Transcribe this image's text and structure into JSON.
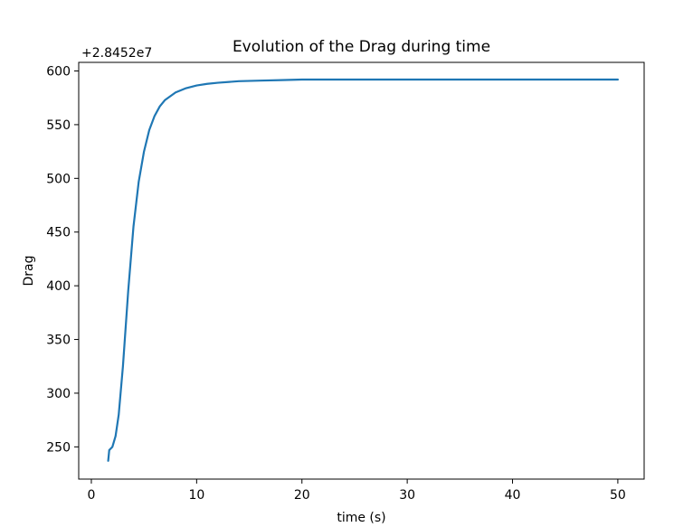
{
  "chart_data": {
    "type": "line",
    "title": "Evolution of the Drag during time",
    "xlabel": "time (s)",
    "ylabel": "Drag",
    "y_offset_label": "+2.8452e7",
    "xlim": [
      -1.2,
      52.5
    ],
    "ylim": [
      220,
      608
    ],
    "x_ticks": [
      0,
      10,
      20,
      30,
      40,
      50
    ],
    "y_ticks": [
      250,
      300,
      350,
      400,
      450,
      500,
      550,
      600
    ],
    "grid": false,
    "line_color": "#1f77b4",
    "series": [
      {
        "x": [
          1.6,
          1.7,
          1.8,
          2.0,
          2.3,
          2.6,
          3.0,
          3.5,
          4.0,
          4.5,
          5.0,
          5.5,
          6.0,
          6.5,
          7.0,
          8.0,
          9.0,
          10.0,
          11.0,
          12.0,
          14.0,
          16.0,
          18.0,
          20.0,
          25.0,
          30.0,
          35.0,
          40.0,
          45.0,
          50.0
        ],
        "values": [
          237,
          247,
          248,
          250,
          260,
          280,
          325,
          395,
          455,
          497,
          525,
          545,
          558,
          567,
          573,
          580,
          584,
          586.5,
          588,
          589,
          590.5,
          591,
          591.5,
          592,
          592,
          592,
          592,
          592,
          592,
          592
        ]
      }
    ]
  }
}
